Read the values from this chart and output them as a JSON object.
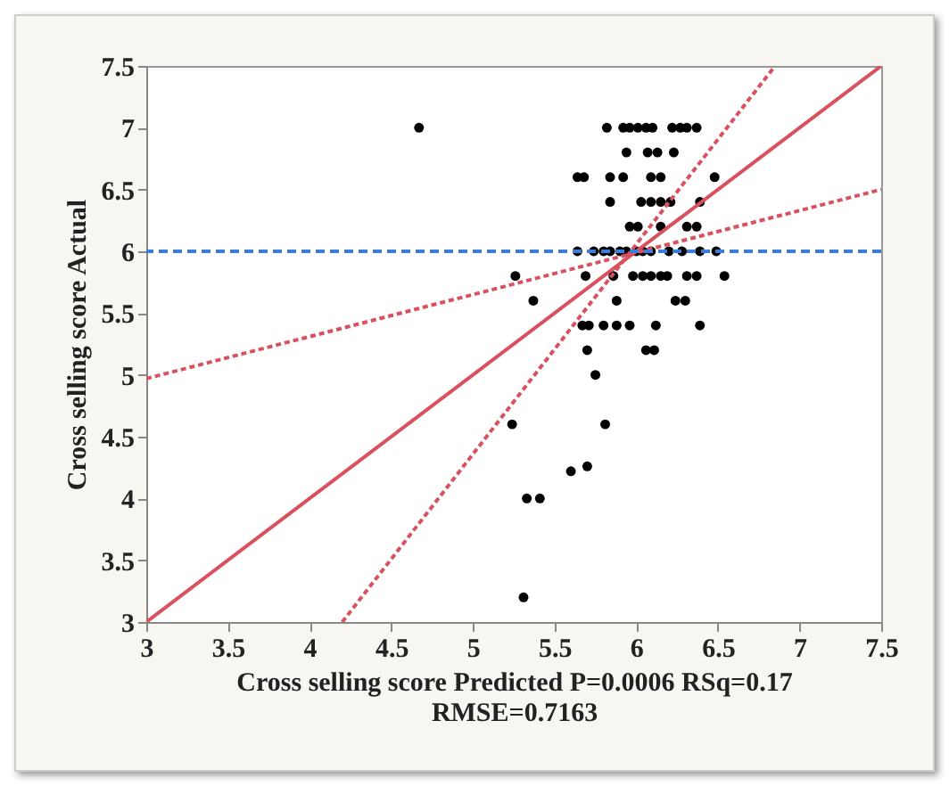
{
  "chart_data": {
    "type": "scatter",
    "xlabel": "Cross selling score Predicted P=0.0006 RSq=0.17\nRMSE=0.7163",
    "ylabel": "Cross selling score Actual",
    "xlim": [
      3,
      7.5
    ],
    "ylim": [
      3,
      7.5
    ],
    "xticks": [
      3,
      3.5,
      4,
      4.5,
      5,
      5.5,
      6,
      6.5,
      7,
      7.5
    ],
    "yticks": [
      3,
      3.5,
      4,
      4.5,
      5,
      5.5,
      6,
      6.5,
      7,
      7.5
    ],
    "grid": false,
    "series": [
      {
        "type": "scatter",
        "marker": "circle",
        "color": "#000000",
        "x": [
          4.67,
          5.82,
          5.92,
          5.96,
          6.01,
          6.06,
          6.1,
          6.22,
          6.27,
          6.31,
          6.37,
          5.94,
          6.07,
          6.13,
          6.23,
          5.64,
          5.68,
          5.84,
          5.92,
          6.09,
          6.15,
          6.48,
          5.84,
          6.03,
          6.09,
          6.15,
          6.21,
          6.39,
          5.96,
          6.01,
          6.15,
          6.31,
          6.37,
          5.64,
          5.74,
          5.8,
          5.84,
          5.9,
          5.94,
          6,
          6.04,
          6.09,
          6.2,
          6.28,
          6.39,
          6.49,
          5.26,
          5.69,
          5.86,
          5.98,
          6.04,
          6.09,
          6.15,
          6.19,
          6.31,
          6.37,
          6.54,
          5.37,
          5.88,
          6.24,
          6.3,
          5.67,
          5.71,
          5.8,
          5.88,
          5.96,
          6.12,
          6.39,
          5.7,
          6.06,
          6.11,
          5.75,
          5.24,
          5.81,
          5.6,
          5.7,
          5.33,
          5.41,
          5.31
        ],
        "values": [
          7,
          7,
          7,
          7,
          7,
          7,
          7,
          7,
          7,
          7,
          7,
          6.8,
          6.8,
          6.8,
          6.8,
          6.6,
          6.6,
          6.6,
          6.6,
          6.6,
          6.6,
          6.6,
          6.4,
          6.4,
          6.4,
          6.4,
          6.4,
          6.4,
          6.2,
          6.2,
          6.2,
          6.2,
          6.2,
          6,
          6,
          6,
          6,
          6,
          6,
          6,
          6,
          6,
          6,
          6,
          6,
          6,
          5.8,
          5.8,
          5.8,
          5.8,
          5.8,
          5.8,
          5.8,
          5.8,
          5.8,
          5.8,
          5.8,
          5.6,
          5.6,
          5.6,
          5.6,
          5.4,
          5.4,
          5.4,
          5.4,
          5.4,
          5.4,
          5.4,
          5.2,
          5.2,
          5.2,
          5,
          4.6,
          4.6,
          4.22,
          4.26,
          4,
          4,
          3.2
        ]
      },
      {
        "type": "line",
        "color": "#d9505e",
        "line_style": "solid",
        "x": [
          3,
          7.5
        ],
        "values": [
          3,
          7.5
        ]
      },
      {
        "type": "line",
        "color": "#d9505e",
        "line_style": "dotted",
        "x": [
          4.2,
          6.85
        ],
        "values": [
          3,
          7.5
        ]
      },
      {
        "type": "line",
        "color": "#d9505e",
        "line_style": "dotted",
        "x": [
          3,
          7.5
        ],
        "values": [
          4.97,
          6.5
        ]
      }
    ],
    "ref_lines": [
      {
        "axis": "y",
        "value": 6,
        "color": "#3b7dd8",
        "line_style": "dashed"
      }
    ]
  }
}
